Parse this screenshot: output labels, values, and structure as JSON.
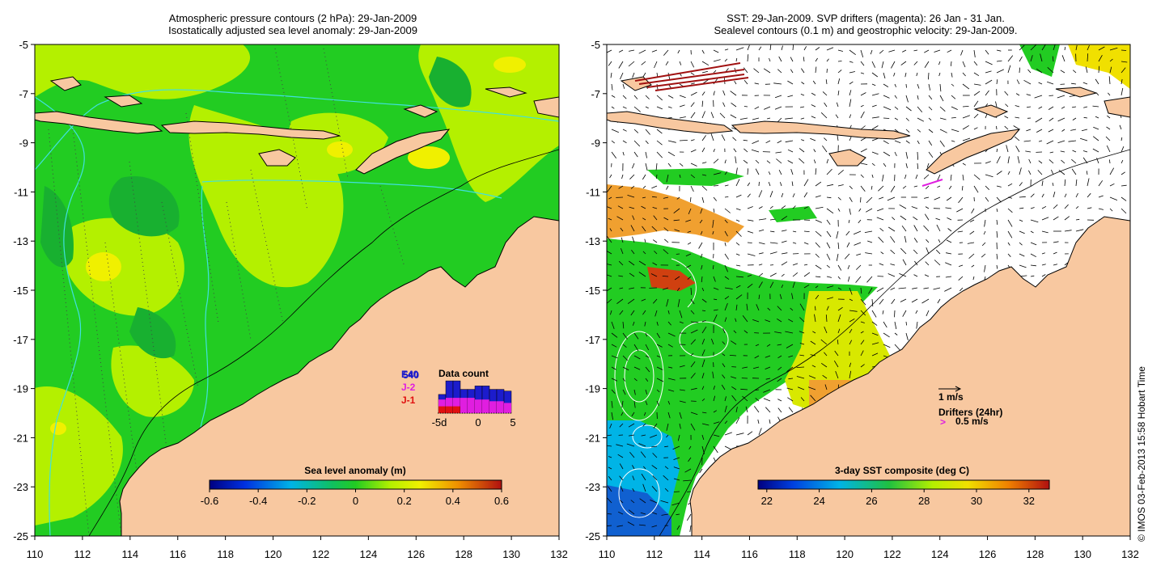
{
  "left_panel": {
    "title_line1": "Atmospheric pressure contours (2 hPa): 29-Jan-2009",
    "title_line2": "Isostatically adjusted sea level anomaly: 29-Jan-2009",
    "y_ticks": [
      "-5",
      "-7",
      "-9",
      "-11",
      "-13",
      "-15",
      "-17",
      "-19",
      "-21",
      "-23",
      "-25"
    ],
    "x_ticks": [
      "110",
      "112",
      "114",
      "116",
      "118",
      "120",
      "122",
      "124",
      "126",
      "128",
      "130",
      "132"
    ],
    "colorbar_title": "Sea level anomaly (m)",
    "colorbar_ticks": [
      "-0.6",
      "-0.4",
      "-0.2",
      "0",
      "0.2",
      "0.4",
      "0.6"
    ],
    "inset": {
      "title": "Data count",
      "legend": [
        {
          "label": "E40",
          "color": "#1c1ccc"
        },
        {
          "label": "J-2",
          "color": "#e01ee0"
        },
        {
          "label": "J-1",
          "color": "#e01010"
        }
      ],
      "overprint": "540",
      "x_labels": [
        "-5d",
        "0",
        "5"
      ],
      "bar_relative": {
        "blue": [
          0.55,
          0.95,
          0.95,
          0.7,
          0.7,
          0.8,
          0.8,
          0.7,
          0.7,
          0.65
        ],
        "magenta": [
          0.4,
          0.45,
          0.45,
          0.45,
          0.45,
          0.4,
          0.4,
          0.35,
          0.35,
          0.3
        ],
        "red": [
          0.2,
          0.2,
          0.2,
          0.0,
          0.0,
          0.0,
          0.0,
          0.0,
          0.0,
          0.0
        ]
      }
    }
  },
  "right_panel": {
    "title_line1": "SST: 29-Jan-2009. SVP drifters (magenta): 26 Jan - 31 Jan.",
    "title_line2": "Sealevel contours (0.1 m) and geostrophic velocity: 29-Jan-2009.",
    "y_ticks": [
      "-5",
      "-7",
      "-9",
      "-11",
      "-13",
      "-15",
      "-17",
      "-19",
      "-21",
      "-23",
      "-25"
    ],
    "x_ticks": [
      "110",
      "112",
      "114",
      "116",
      "118",
      "120",
      "122",
      "124",
      "126",
      "128",
      "130",
      "132"
    ],
    "colorbar_title": "3-day SST composite (deg C)",
    "colorbar_ticks": [
      "22",
      "24",
      "26",
      "28",
      "30",
      "32"
    ],
    "velocity_scale": "1 m/s",
    "drifters_label": "Drifters (24hr)",
    "drifter_scale": "0.5 m/s",
    "drifter_symbol": ">"
  },
  "credit": "© IMOS 03-Feb-2013 15:58 Hobart Time",
  "colors": {
    "land": "#f8c8a0",
    "contour": "#40e0e0",
    "ocean_green": "#22cc22",
    "ocean_lime": "#b4f000",
    "sst_white": "#ffffff"
  }
}
